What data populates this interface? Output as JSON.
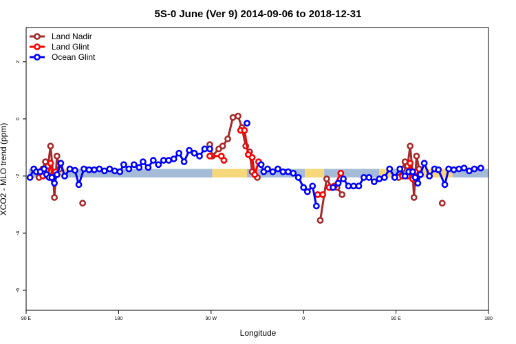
{
  "chart_data": {
    "type": "line",
    "title": "5S-0 June (Ver 9)   2014-09-06 to 2018-12-31",
    "xlabel": "Longitude",
    "ylabel": "XCO2 - MLO trend (ppm)",
    "xlim": [
      90,
      450
    ],
    "ylim": [
      -6.7,
      3.2
    ],
    "x_ticks": [
      {
        "value": 90,
        "label": "90 E"
      },
      {
        "value": 162,
        "label": "180"
      },
      {
        "value": 234,
        "label": "90 W"
      },
      {
        "value": 306,
        "label": "0"
      },
      {
        "value": 378,
        "label": "90 E"
      },
      {
        "value": 450,
        "label": "180"
      }
    ],
    "y_ticks": [
      {
        "value": 2,
        "label": "2"
      },
      {
        "value": 0,
        "label": "0"
      },
      {
        "value": -2,
        "label": "-2"
      },
      {
        "value": -4,
        "label": "-4"
      },
      {
        "value": -6,
        "label": "-6"
      }
    ],
    "grid": false,
    "legend_position": "top-left",
    "background_band": {
      "y_range": [
        -2.05,
        -1.75
      ],
      "segments": [
        {
          "x": [
            92,
            102
          ],
          "color": "#a5bbd8"
        },
        {
          "x": [
            102,
            122
          ],
          "color": "#f6d87a"
        },
        {
          "x": [
            122,
            235
          ],
          "color": "#a5bbd8"
        },
        {
          "x": [
            235,
            262
          ],
          "color": "#f6d87a"
        },
        {
          "x": [
            262,
            307
          ],
          "color": "#a5bbd8"
        },
        {
          "x": [
            307,
            322
          ],
          "color": "#f6d87a"
        },
        {
          "x": [
            322,
            365
          ],
          "color": "#a5bbd8"
        },
        {
          "x": [
            365,
            374
          ],
          "color": "#f6d87a"
        },
        {
          "x": [
            374,
            399
          ],
          "color": "#a5bbd8"
        },
        {
          "x": [
            399,
            422
          ],
          "color": "#f6d87a"
        },
        {
          "x": [
            422,
            450
          ],
          "color": "#a5bbd8"
        }
      ]
    },
    "series": [
      {
        "name": "Land Nadir",
        "color": "#a52a2a",
        "segments": [
          [
            [
              100,
              -2.05
            ],
            [
              103,
              -1.75
            ],
            [
              105,
              -1.5
            ],
            [
              107,
              -1.65
            ],
            [
              109,
              -0.95
            ],
            [
              111,
              -1.95
            ],
            [
              112,
              -2.75
            ],
            [
              114,
              -1.3
            ],
            [
              116,
              -1.75
            ]
          ],
          [
            [
              134,
              -2.95
            ]
          ],
          [
            [
              233,
              -0.9
            ],
            [
              235,
              -1.3
            ],
            [
              240,
              -1.05
            ],
            [
              243,
              -0.95
            ],
            [
              247,
              -0.7
            ],
            [
              251,
              0.05
            ],
            [
              255,
              0.1
            ],
            [
              258,
              -0.3
            ],
            [
              261,
              -0.95
            ],
            [
              264,
              -1.15
            ],
            [
              266,
              -1.85
            ],
            [
              270,
              -2.05
            ]
          ],
          [
            [
              319,
              -3.55
            ],
            [
              324,
              -2.1
            ],
            [
              328,
              -2.4
            ],
            [
              332,
              -2.4
            ],
            [
              336,
              -2.65
            ]
          ],
          [
            [
              380,
              -2.05
            ],
            [
              383,
              -1.75
            ],
            [
              385,
              -1.5
            ],
            [
              387,
              -1.65
            ],
            [
              389,
              -0.95
            ],
            [
              391,
              -1.95
            ],
            [
              392,
              -2.75
            ],
            [
              394,
              -1.3
            ],
            [
              396,
              -1.75
            ]
          ],
          [
            [
              414,
              -2.95
            ]
          ]
        ]
      },
      {
        "name": "Land Glint",
        "color": "#ff0000",
        "segments": [
          [
            [
              103,
              -2.0
            ],
            [
              107,
              -2.0
            ],
            [
              109,
              -1.55
            ],
            [
              111,
              -2.1
            ],
            [
              113,
              -1.85
            ]
          ],
          [
            [
              233,
              -1.3
            ],
            [
              242,
              -1.3
            ],
            [
              244,
              -1.45
            ]
          ],
          [
            [
              257,
              -0.4
            ],
            [
              260,
              -0.4
            ],
            [
              263,
              -1.25
            ],
            [
              266,
              -1.35
            ],
            [
              268,
              -1.95
            ],
            [
              271,
              -1.5
            ]
          ],
          [
            [
              317,
              -2.65
            ],
            [
              321,
              -2.65
            ]
          ],
          [
            [
              326,
              -2.4
            ],
            [
              330,
              -2.35
            ],
            [
              335,
              -1.9
            ]
          ],
          [
            [
              383,
              -2.0
            ],
            [
              387,
              -2.0
            ],
            [
              389,
              -1.55
            ],
            [
              391,
              -2.1
            ],
            [
              393,
              -1.85
            ]
          ]
        ]
      },
      {
        "name": "Ocean Glint",
        "color": "#0000ff",
        "segments": [
          [
            [
              93,
              -2.05
            ],
            [
              96,
              -1.75
            ],
            [
              98,
              -1.85
            ],
            [
              101,
              -1.85
            ],
            [
              104,
              -1.75
            ],
            [
              106,
              -1.95
            ],
            [
              108,
              -2.05
            ],
            [
              110,
              -2.05
            ],
            [
              112,
              -2.25
            ],
            [
              114,
              -1.95
            ],
            [
              117,
              -1.55
            ],
            [
              120,
              -2.0
            ],
            [
              124,
              -1.75
            ],
            [
              128,
              -1.8
            ],
            [
              131,
              -2.3
            ],
            [
              135,
              -1.75
            ],
            [
              139,
              -1.78
            ],
            [
              143,
              -1.78
            ],
            [
              147,
              -1.75
            ],
            [
              151,
              -1.82
            ],
            [
              155,
              -1.75
            ],
            [
              159,
              -1.82
            ],
            [
              163,
              -1.85
            ],
            [
              166,
              -1.6
            ],
            [
              170,
              -1.75
            ],
            [
              174,
              -1.6
            ],
            [
              178,
              -1.7
            ],
            [
              181,
              -1.5
            ],
            [
              185,
              -1.7
            ],
            [
              189,
              -1.45
            ],
            [
              193,
              -1.6
            ],
            [
              197,
              -1.45
            ],
            [
              201,
              -1.45
            ],
            [
              205,
              -1.4
            ],
            [
              209,
              -1.2
            ],
            [
              213,
              -1.5
            ],
            [
              217,
              -1.1
            ],
            [
              221,
              -1.2
            ],
            [
              225,
              -1.3
            ],
            [
              229,
              -1.05
            ],
            [
              233,
              -1.05
            ]
          ],
          [
            [
              262,
              -0.15
            ]
          ],
          [
            [
              273,
              -1.6
            ],
            [
              275,
              -1.85
            ],
            [
              278,
              -1.75
            ],
            [
              282,
              -1.85
            ],
            [
              286,
              -1.75
            ],
            [
              290,
              -1.85
            ],
            [
              294,
              -1.85
            ],
            [
              298,
              -1.9
            ],
            [
              302,
              -2.05
            ],
            [
              306,
              -2.4
            ],
            [
              309,
              -2.55
            ],
            [
              313,
              -2.35
            ],
            [
              316,
              -3.05
            ]
          ],
          [
            [
              329,
              -2.4
            ],
            [
              333,
              -2.25
            ],
            [
              337,
              -2.1
            ],
            [
              341,
              -2.35
            ],
            [
              345,
              -2.35
            ],
            [
              349,
              -2.35
            ],
            [
              353,
              -2.05
            ],
            [
              357,
              -2.05
            ],
            [
              361,
              -2.2
            ],
            [
              365,
              -2.1
            ],
            [
              369,
              -2.05
            ],
            [
              373,
              -1.75
            ],
            [
              377,
              -2.05
            ],
            [
              381,
              -1.75
            ],
            [
              385,
              -2.0
            ],
            [
              388,
              -1.85
            ],
            [
              391,
              -1.85
            ],
            [
              393,
              -2.05
            ],
            [
              395,
              -2.25
            ],
            [
              397,
              -1.95
            ],
            [
              400,
              -1.55
            ],
            [
              404,
              -2.0
            ],
            [
              408,
              -1.75
            ],
            [
              411,
              -1.78
            ],
            [
              416,
              -2.3
            ],
            [
              419,
              -1.75
            ],
            [
              423,
              -1.78
            ],
            [
              427,
              -1.75
            ],
            [
              431,
              -1.72
            ],
            [
              435,
              -1.82
            ],
            [
              439,
              -1.75
            ],
            [
              444,
              -1.72
            ]
          ]
        ]
      }
    ]
  }
}
